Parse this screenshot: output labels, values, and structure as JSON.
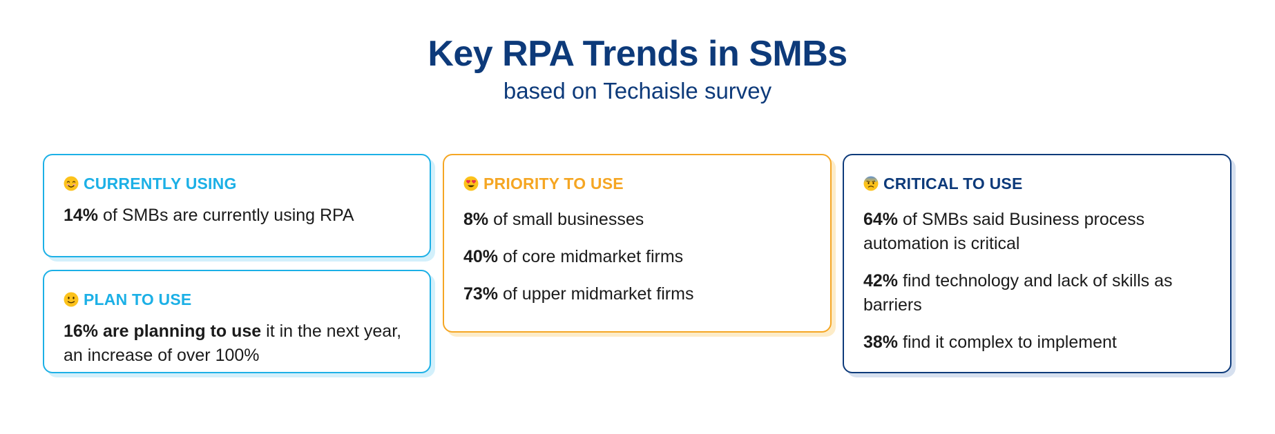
{
  "header": {
    "title": "Key RPA Trends in SMBs",
    "subtitle": "based on Techaisle survey"
  },
  "colors": {
    "title": "#0d3a7a",
    "blue_accent": "#1cb0e6",
    "orange_accent": "#f5a623",
    "navy_accent": "#0d3a7a",
    "body_text": "#1b1b1b"
  },
  "cards": {
    "currently": {
      "icon": "smiling-face-icon",
      "heading": "CURRENTLY USING",
      "stats": [
        {
          "bold": "14%",
          "rest": " of SMBs are currently using RPA"
        }
      ]
    },
    "plan": {
      "icon": "slightly-smiling-face-icon",
      "heading": "PLAN TO USE",
      "stats": [
        {
          "bold": "16% are planning to use",
          "rest": " it in the next year, an increase of over 100%"
        }
      ]
    },
    "priority": {
      "icon": "heart-eyes-face-icon",
      "heading": "PRIORITY TO USE",
      "stats": [
        {
          "bold": "8%",
          "rest": " of small businesses"
        },
        {
          "bold": "40%",
          "rest": " of core midmarket firms"
        },
        {
          "bold": "73%",
          "rest": " of upper midmarket firms"
        }
      ]
    },
    "critical": {
      "icon": "anxious-face-with-sweat-icon",
      "heading": "CRITICAL TO USE",
      "stats": [
        {
          "bold": "64%",
          "rest": " of SMBs said Business process automation is critical"
        },
        {
          "bold": "42%",
          "rest": " find technology and lack of skills as barriers"
        },
        {
          "bold": "38%",
          "rest": " find it complex to implement"
        }
      ]
    }
  }
}
